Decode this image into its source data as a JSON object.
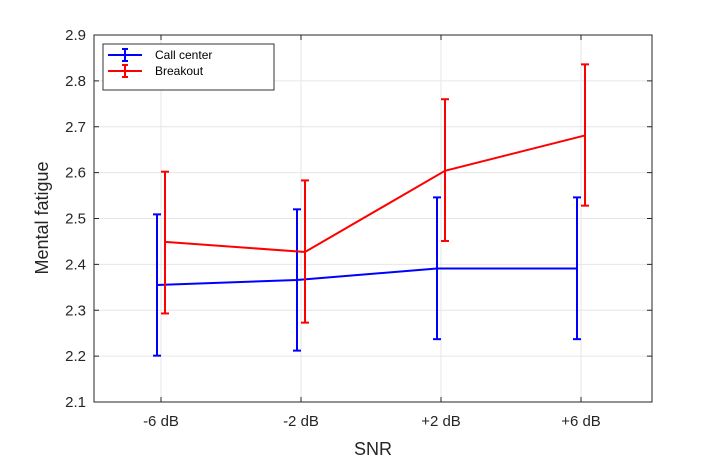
{
  "chart_data": {
    "type": "line",
    "title": "",
    "xlabel": "SNR",
    "ylabel": "Mental fatigue",
    "categories": [
      "-6 dB",
      "-2 dB",
      "+2 dB",
      "+6 dB"
    ],
    "ylim": [
      2.1,
      2.9
    ],
    "yticks": [
      "2.1",
      "2.2",
      "2.3",
      "2.4",
      "2.5",
      "2.6",
      "2.7",
      "2.8",
      "2.9"
    ],
    "grid": true,
    "legend_position": "top-left",
    "series": [
      {
        "name": "Call center",
        "color": "#0000ff",
        "values": [
          2.355,
          2.366,
          2.391,
          2.391
        ],
        "err_low": [
          2.201,
          2.212,
          2.237,
          2.237
        ],
        "err_high": [
          2.509,
          2.52,
          2.546,
          2.546
        ]
      },
      {
        "name": "Breakout",
        "color": "#ff0000",
        "values": [
          2.449,
          2.427,
          2.604,
          2.681
        ],
        "err_low": [
          2.293,
          2.273,
          2.451,
          2.528
        ],
        "err_high": [
          2.602,
          2.583,
          2.76,
          2.836
        ]
      }
    ]
  }
}
